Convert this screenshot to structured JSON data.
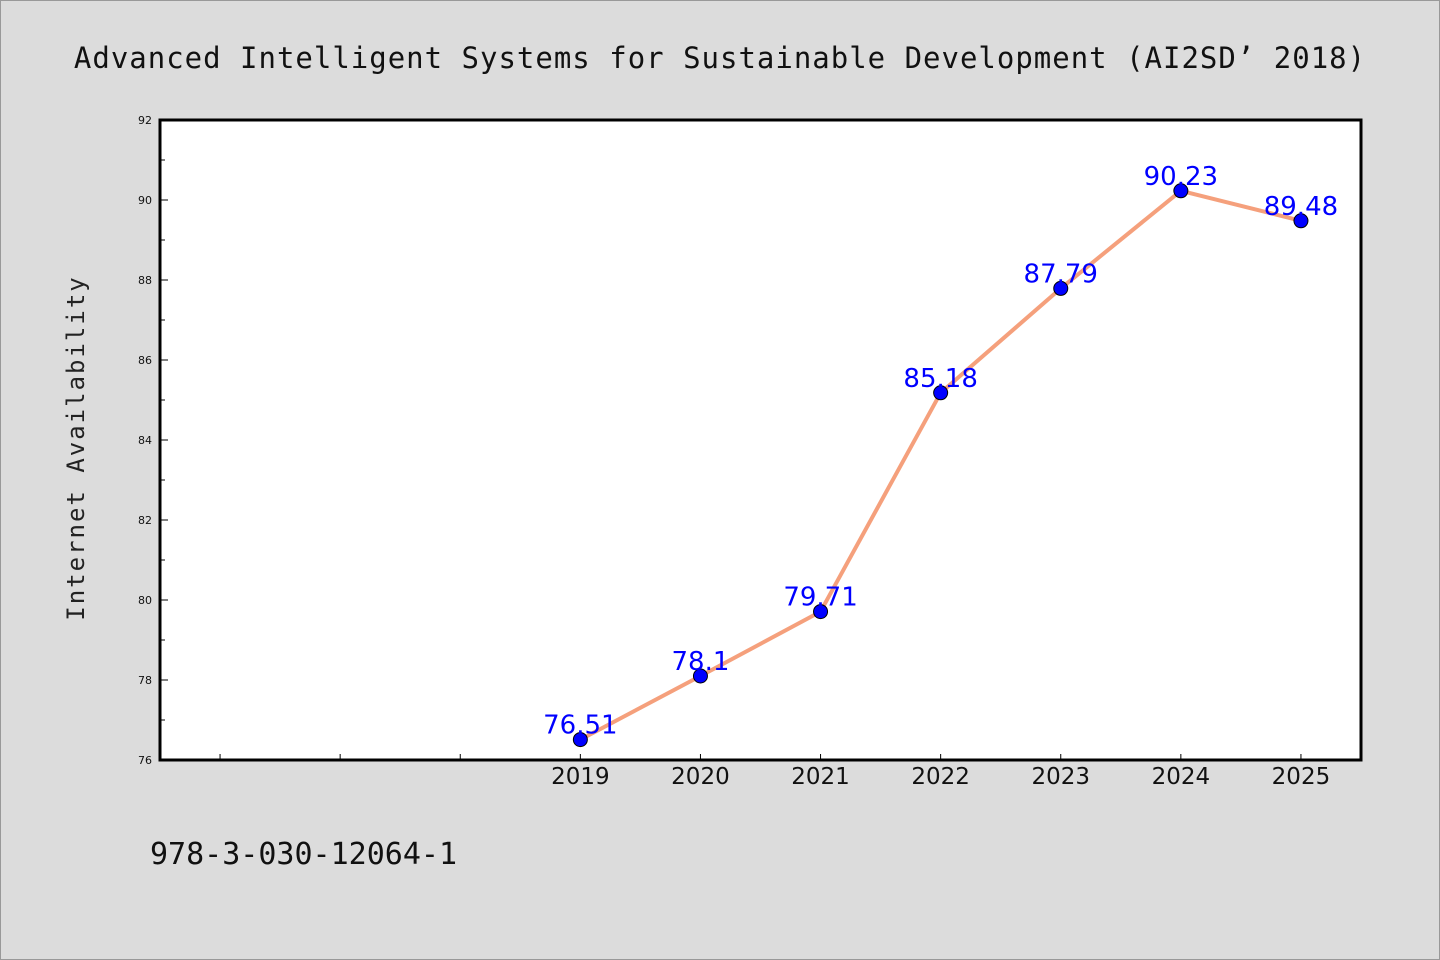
{
  "footer": {
    "isbn": "978-3-030-12064-1"
  },
  "colors": {
    "background": "#dcdcdc",
    "plot_background": "#ffffff",
    "line": "#f5a07c",
    "marker": "#0000ff",
    "label": "#0000ff"
  },
  "chart_data": {
    "type": "line",
    "title": "Advanced Intelligent Systems for Sustainable Development (AI2SD’ 2018)",
    "xlabel": "",
    "ylabel": "Internet Availability",
    "x_range": [
      2015.5,
      2025.5
    ],
    "ylim": [
      76,
      92
    ],
    "y_ticks": [
      76,
      78,
      80,
      82,
      84,
      86,
      88,
      90,
      92
    ],
    "x_tick_labels": [
      "2019",
      "2020",
      "2021",
      "2022",
      "2023",
      "2024",
      "2025"
    ],
    "grid": false,
    "legend": "none",
    "series": [
      {
        "x": [
          2019,
          2020,
          2021,
          2022,
          2023,
          2024,
          2025
        ],
        "y": [
          76.51,
          78.1,
          79.71,
          85.18,
          87.79,
          90.23,
          89.48
        ],
        "labels": [
          "76.51",
          "78.1",
          "79.71",
          "85.18",
          "87.79",
          "90.23",
          "89.48"
        ]
      }
    ]
  }
}
